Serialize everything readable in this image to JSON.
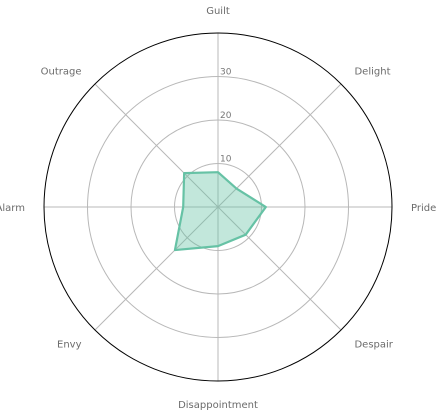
{
  "chart_data": {
    "type": "radar",
    "title": "",
    "categories": [
      "Guilt",
      "Delight",
      "Pride",
      "Despair",
      "Disappointment",
      "Envy",
      "Alarm",
      "Outrage"
    ],
    "series": [
      {
        "values": [
          8,
          6,
          11,
          9,
          9,
          14,
          8,
          11
        ],
        "color": "#66c2a5",
        "fill_color": "#66c2a5",
        "fill_opacity": 0.4
      }
    ],
    "radial_ticks": [
      10,
      20,
      30
    ],
    "rlim": [
      0,
      40
    ],
    "grid": true,
    "start_angle": "top",
    "direction": "clockwise",
    "grid_color": "#b8b8b8",
    "outer_ring_color": "#000000"
  }
}
